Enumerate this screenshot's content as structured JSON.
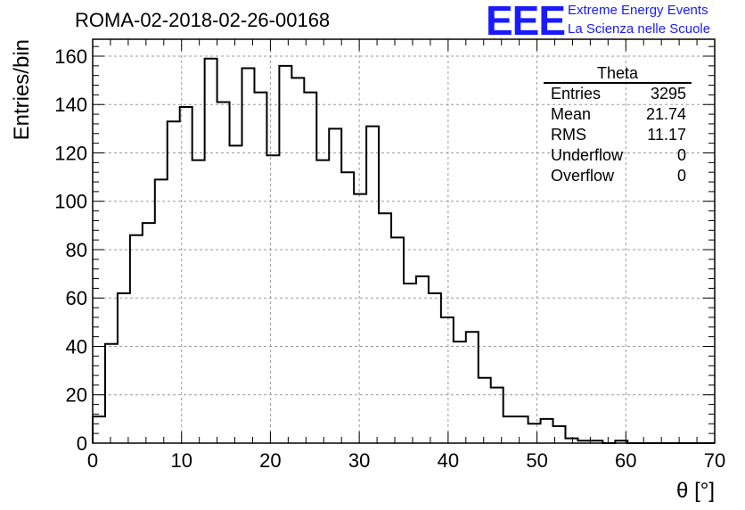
{
  "header": {
    "run_title": "ROMA-02-2018-02-26-00168",
    "logo_text": "EEE",
    "logo_line1": "Extreme Energy Events",
    "logo_line2": "La Scienza nelle Scuole",
    "logo_color": "#1a1aff"
  },
  "stats_box": {
    "title": "Theta",
    "rows": [
      {
        "label": "Entries",
        "value": "3295"
      },
      {
        "label": "Mean",
        "value": "21.74"
      },
      {
        "label": "RMS",
        "value": "11.17"
      },
      {
        "label": "Underflow",
        "value": "0"
      },
      {
        "label": "Overflow",
        "value": "0"
      }
    ]
  },
  "chart_data": {
    "type": "bar",
    "style": "step-histogram",
    "title": "ROMA-02-2018-02-26-00168",
    "xlabel": "θ [°]",
    "ylabel": "Entries/bin",
    "xlim": [
      0,
      70
    ],
    "ylim": [
      0,
      167
    ],
    "grid": true,
    "bin_width": 1.4,
    "x_ticks": [
      0,
      10,
      20,
      30,
      40,
      50,
      60,
      70
    ],
    "y_ticks": [
      0,
      20,
      40,
      60,
      80,
      100,
      120,
      140,
      160
    ],
    "values": [
      11,
      41,
      62,
      86,
      91,
      109,
      133,
      139,
      117,
      159,
      141,
      123,
      155,
      145,
      119,
      156,
      151,
      145,
      117,
      130,
      112,
      103,
      131,
      95,
      85,
      66,
      69,
      62,
      52,
      42,
      46,
      27,
      23,
      11,
      11,
      8,
      10,
      7,
      2,
      1,
      1,
      0,
      1,
      0,
      0,
      0,
      0,
      0,
      0,
      0
    ]
  }
}
